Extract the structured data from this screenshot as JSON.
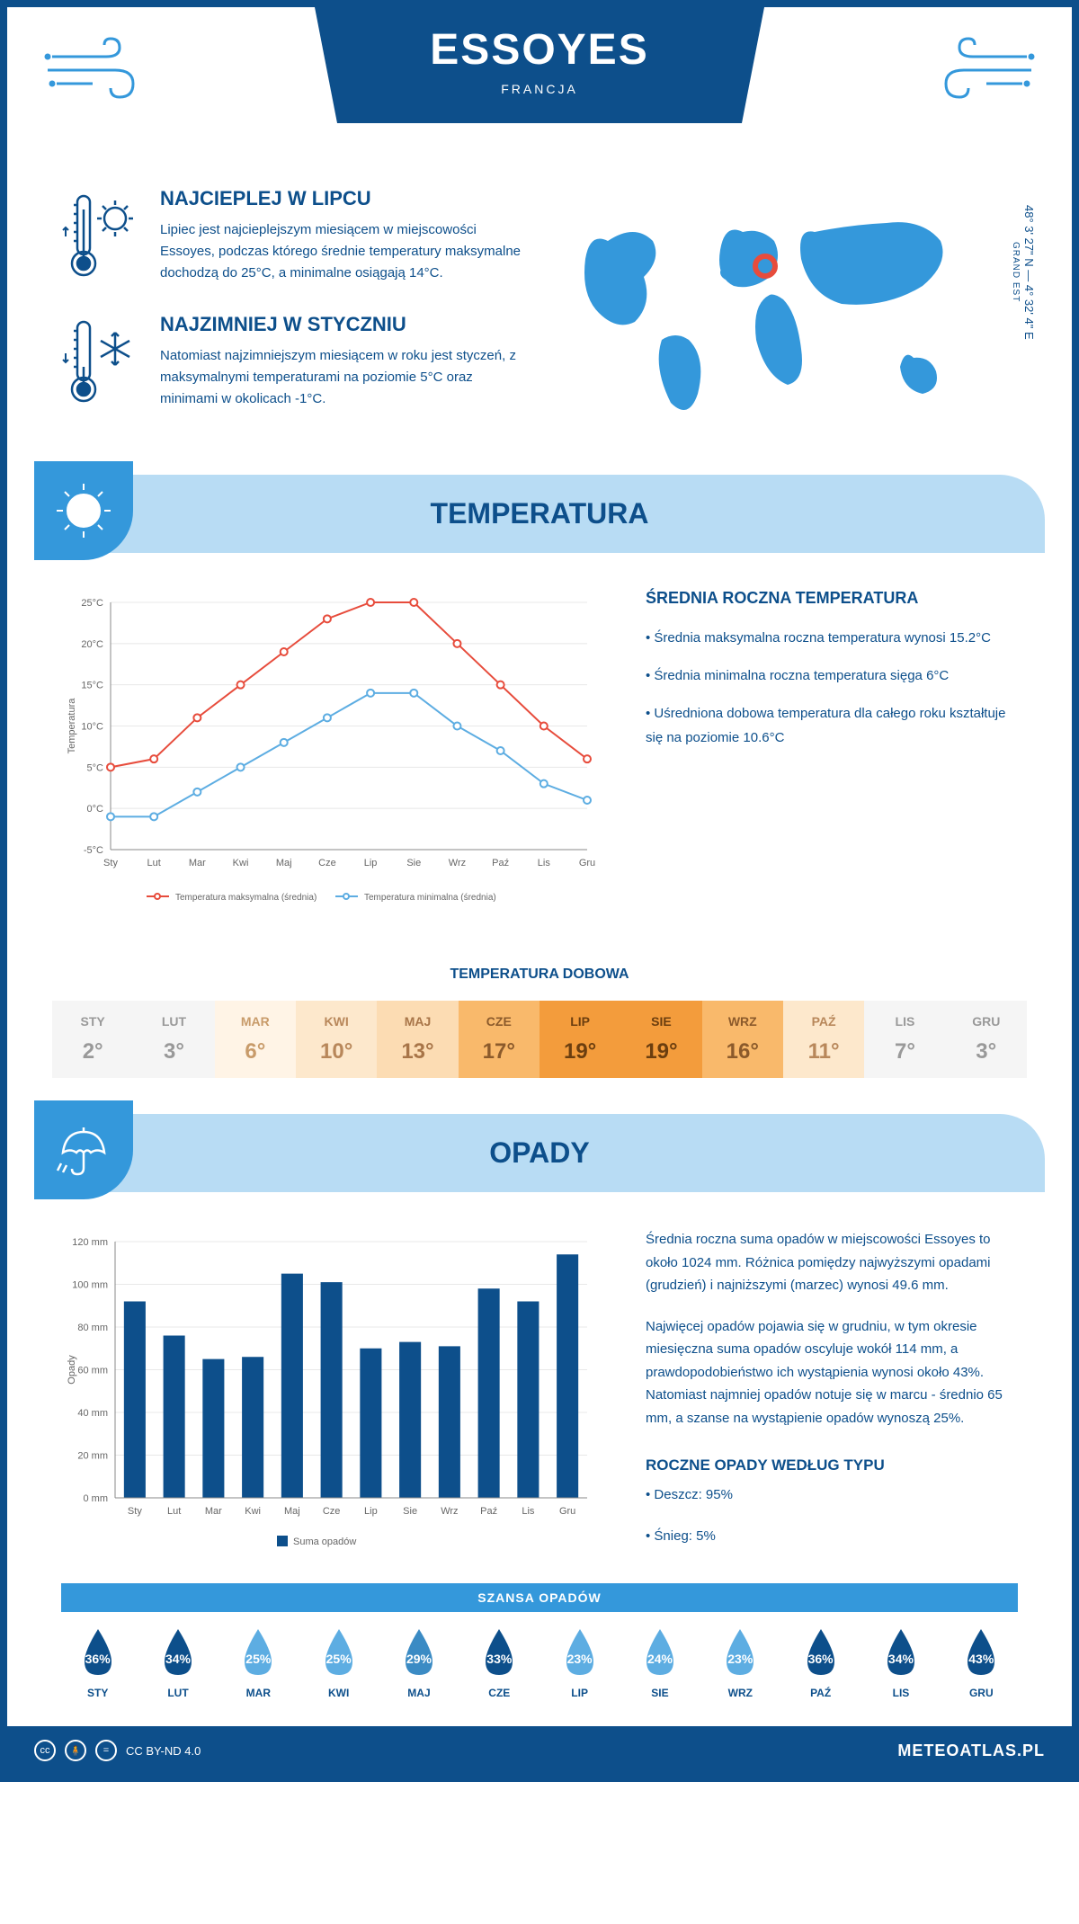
{
  "header": {
    "city": "ESSOYES",
    "country": "FRANCJA"
  },
  "coords": {
    "lat": "48° 3' 27\" N — 4° 32' 4\" E",
    "region": "GRAND EST"
  },
  "hot": {
    "title": "NAJCIEPLEJ W LIPCU",
    "text": "Lipiec jest najcieplejszym miesiącem w miejscowości Essoyes, podczas którego średnie temperatury maksymalne dochodzą do 25°C, a minimalne osiągają 14°C."
  },
  "cold": {
    "title": "NAJZIMNIEJ W STYCZNIU",
    "text": "Natomiast najzimniejszym miesiącem w roku jest styczeń, z maksymalnymi temperaturami na poziomie 5°C oraz minimami w okolicach -1°C."
  },
  "sections": {
    "temperatura": "TEMPERATURA",
    "opady": "OPADY"
  },
  "temp_chart": {
    "type": "line",
    "months": [
      "Sty",
      "Lut",
      "Mar",
      "Kwi",
      "Maj",
      "Cze",
      "Lip",
      "Sie",
      "Wrz",
      "Paź",
      "Lis",
      "Gru"
    ],
    "ylabel": "Temperatura",
    "ylim": [
      -5,
      25
    ],
    "ytick_step": 5,
    "ytick_labels": [
      "-5°C",
      "0°C",
      "5°C",
      "10°C",
      "15°C",
      "20°C",
      "25°C"
    ],
    "series": [
      {
        "name": "Temperatura maksymalna (średnia)",
        "color": "#e74c3c",
        "values": [
          5,
          6,
          11,
          15,
          19,
          23,
          25,
          25,
          20,
          15,
          10,
          6
        ]
      },
      {
        "name": "Temperatura minimalna (średnia)",
        "color": "#5dade2",
        "values": [
          -1,
          -1,
          2,
          5,
          8,
          11,
          14,
          14,
          10,
          7,
          3,
          1
        ]
      }
    ],
    "grid_color": "#e8e8e8",
    "axis_color": "#888",
    "marker": "circle",
    "marker_size": 4,
    "line_width": 2
  },
  "temp_info": {
    "title": "ŚREDNIA ROCZNA TEMPERATURA",
    "b1": "• Średnia maksymalna roczna temperatura wynosi 15.2°C",
    "b2": "• Średnia minimalna roczna temperatura sięga 6°C",
    "b3": "• Uśredniona dobowa temperatura dla całego roku kształtuje się na poziomie 10.6°C"
  },
  "dobowa": {
    "title": "TEMPERATURA DOBOWA",
    "months": [
      "STY",
      "LUT",
      "MAR",
      "KWI",
      "MAJ",
      "CZE",
      "LIP",
      "SIE",
      "WRZ",
      "PAŹ",
      "LIS",
      "GRU"
    ],
    "temps": [
      "2°",
      "3°",
      "6°",
      "10°",
      "13°",
      "17°",
      "19°",
      "19°",
      "16°",
      "11°",
      "7°",
      "3°"
    ],
    "bg_colors": [
      "#f5f5f5",
      "#f5f5f5",
      "#fff4e6",
      "#fde8cc",
      "#fcdcb3",
      "#f9b96b",
      "#f39c3c",
      "#f39c3c",
      "#f9b96b",
      "#fde8cc",
      "#f5f5f5",
      "#f5f5f5"
    ],
    "text_colors": [
      "#999999",
      "#999999",
      "#c89b6a",
      "#b8875a",
      "#a87548",
      "#8b5a2b",
      "#6b3e0f",
      "#6b3e0f",
      "#8b5a2b",
      "#b8875a",
      "#999999",
      "#999999"
    ]
  },
  "precip_chart": {
    "type": "bar",
    "months": [
      "Sty",
      "Lut",
      "Mar",
      "Kwi",
      "Maj",
      "Cze",
      "Lip",
      "Sie",
      "Wrz",
      "Paź",
      "Lis",
      "Gru"
    ],
    "ylabel": "Opady",
    "ylim": [
      0,
      120
    ],
    "ytick_step": 20,
    "ytick_labels": [
      "0 mm",
      "20 mm",
      "40 mm",
      "60 mm",
      "80 mm",
      "100 mm",
      "120 mm"
    ],
    "values": [
      92,
      76,
      65,
      66,
      105,
      101,
      70,
      73,
      71,
      98,
      92,
      114
    ],
    "bar_color": "#0d4f8b",
    "legend": "Suma opadów",
    "grid_color": "#e8e8e8",
    "axis_color": "#888",
    "bar_width": 0.55
  },
  "precip_info": {
    "p1": "Średnia roczna suma opadów w miejscowości Essoyes to około 1024 mm. Różnica pomiędzy najwyższymi opadami (grudzień) i najniższymi (marzec) wynosi 49.6 mm.",
    "p2": "Najwięcej opadów pojawia się w grudniu, w tym okresie miesięczna suma opadów oscyluje wokół 114 mm, a prawdopodobieństwo ich wystąpienia wynosi około 43%. Natomiast najmniej opadów notuje się w marcu - średnio 65 mm, a szanse na wystąpienie opadów wynoszą 25%.",
    "type_title": "ROCZNE OPADY WEDŁUG TYPU",
    "type1": "• Deszcz: 95%",
    "type2": "• Śnieg: 5%"
  },
  "szansa": {
    "title": "SZANSA OPADÓW",
    "months": [
      "STY",
      "LUT",
      "MAR",
      "KWI",
      "MAJ",
      "CZE",
      "LIP",
      "SIE",
      "WRZ",
      "PAŹ",
      "LIS",
      "GRU"
    ],
    "values": [
      "36%",
      "34%",
      "25%",
      "25%",
      "29%",
      "33%",
      "23%",
      "24%",
      "23%",
      "36%",
      "34%",
      "43%"
    ],
    "colors": [
      "#0d4f8b",
      "#0d4f8b",
      "#5dade2",
      "#5dade2",
      "#3b8bc4",
      "#0d4f8b",
      "#5dade2",
      "#5dade2",
      "#5dade2",
      "#0d4f8b",
      "#0d4f8b",
      "#0d4f8b"
    ]
  },
  "footer": {
    "license": "CC BY-ND 4.0",
    "site": "METEOATLAS.PL"
  }
}
